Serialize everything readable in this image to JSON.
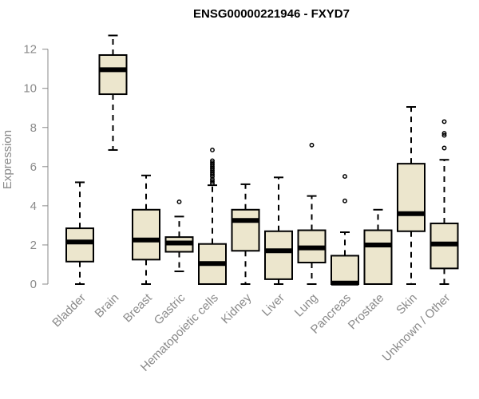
{
  "chart_data": {
    "type": "boxplot",
    "title": "ENSG00000221946 - FXYD7",
    "ylabel": "Expression",
    "xlabel": "",
    "ylim": [
      0,
      12.8
    ],
    "yticks": [
      0,
      2,
      4,
      6,
      8,
      10,
      12
    ],
    "grid": false,
    "box_fill": "#ece6cd",
    "line_color": "#000000",
    "axis_color": "#8a8a8a",
    "categories": [
      "Bladder",
      "Brain",
      "Breast",
      "Gastric",
      "Hematopoietic cells",
      "Kidney",
      "Liver",
      "Lung",
      "Pancreas",
      "Prostate",
      "Skin",
      "Unknown / Other"
    ],
    "boxes": [
      {
        "min": 0.0,
        "q1": 1.15,
        "median": 2.15,
        "q3": 2.85,
        "max": 5.2,
        "outliers": []
      },
      {
        "min": 6.85,
        "q1": 9.7,
        "median": 10.95,
        "q3": 11.7,
        "max": 12.7,
        "outliers": []
      },
      {
        "min": 0.0,
        "q1": 1.25,
        "median": 2.25,
        "q3": 3.8,
        "max": 5.55,
        "outliers": []
      },
      {
        "min": 0.65,
        "q1": 1.65,
        "median": 2.1,
        "q3": 2.4,
        "max": 3.45,
        "outliers": [
          4.2
        ]
      },
      {
        "min": 0.0,
        "q1": 0.0,
        "median": 1.05,
        "q3": 2.05,
        "max": 5.05,
        "outliers": [
          5.15,
          5.25,
          5.35,
          5.5,
          5.6,
          5.7,
          5.8,
          5.9,
          6.0,
          6.1,
          6.2,
          6.3,
          6.85
        ]
      },
      {
        "min": 0.0,
        "q1": 1.7,
        "median": 3.25,
        "q3": 3.8,
        "max": 5.1,
        "outliers": []
      },
      {
        "min": 0.0,
        "q1": 0.25,
        "median": 1.7,
        "q3": 2.7,
        "max": 5.45,
        "outliers": []
      },
      {
        "min": 0.0,
        "q1": 1.1,
        "median": 1.85,
        "q3": 2.75,
        "max": 4.5,
        "outliers": [
          7.1
        ]
      },
      {
        "min": 0.0,
        "q1": 0.0,
        "median": 0.05,
        "q3": 1.45,
        "max": 2.65,
        "outliers": [
          4.25,
          5.5
        ]
      },
      {
        "min": 0.0,
        "q1": 0.0,
        "median": 2.0,
        "q3": 2.75,
        "max": 3.8,
        "outliers": []
      },
      {
        "min": 0.0,
        "q1": 2.7,
        "median": 3.6,
        "q3": 6.15,
        "max": 9.05,
        "outliers": []
      },
      {
        "min": 0.0,
        "q1": 0.8,
        "median": 2.05,
        "q3": 3.1,
        "max": 6.35,
        "outliers": [
          6.95,
          7.6,
          7.7,
          8.3
        ]
      }
    ]
  }
}
